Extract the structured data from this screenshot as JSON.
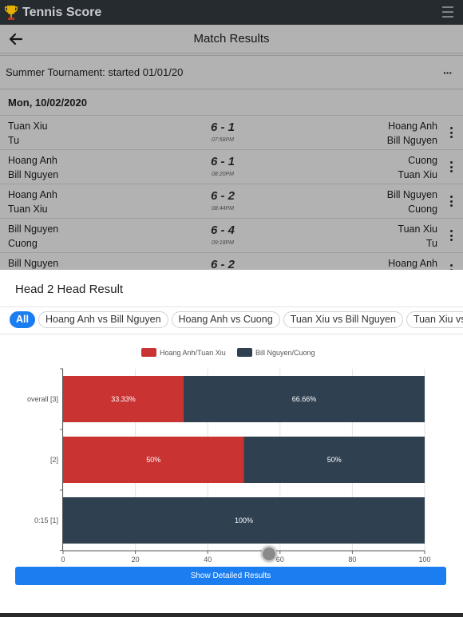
{
  "app": {
    "title": "Tennis Score"
  },
  "header": {
    "title": "Match Results"
  },
  "tournament": {
    "label": "Summer Tournament: started 01/01/20",
    "menu_label": "···"
  },
  "day": {
    "label": "Mon, 10/02/2020"
  },
  "matches": [
    {
      "left1": "Tuan Xiu",
      "left2": "Tu",
      "score": "6 - 1",
      "time": "07:58PM",
      "right1": "Hoang Anh",
      "right2": "Bill Nguyen"
    },
    {
      "left1": "Hoang Anh",
      "left2": "Bill Nguyen",
      "score": "6 - 1",
      "time": "08:20PM",
      "right1": "Cuong",
      "right2": "Tuan Xiu"
    },
    {
      "left1": "Hoang Anh",
      "left2": "Tuan Xiu",
      "score": "6 - 2",
      "time": "08:44PM",
      "right1": "Bill Nguyen",
      "right2": "Cuong"
    },
    {
      "left1": "Bill Nguyen",
      "left2": "Cuong",
      "score": "6 - 4",
      "time": "09:18PM",
      "right1": "Tuan Xiu",
      "right2": "Tu"
    },
    {
      "left1": "Bill Nguyen",
      "left2": "",
      "score": "6 - 2",
      "time": "",
      "right1": "Hoang Anh",
      "right2": ""
    }
  ],
  "sheet": {
    "title": "Head 2 Head Result",
    "chips": [
      "All",
      "Hoang Anh vs Bill Nguyen",
      "Hoang Anh vs Cuong",
      "Tuan Xiu vs Bill Nguyen",
      "Tuan Xiu vs Cuong"
    ],
    "button_label": "Show Detailed Results"
  },
  "colors": {
    "team1": "#c93433",
    "team2": "#2f4050",
    "accent": "#1a7df0",
    "topbar": "#262b30"
  },
  "chart_data": {
    "type": "bar",
    "orientation": "horizontal",
    "stacked": true,
    "categories": [
      "overall [3]",
      "[2]",
      "0:15 [1]"
    ],
    "series": [
      {
        "name": "Hoang Anh/Tuan Xiu",
        "values": [
          33.33,
          50,
          0
        ],
        "labels": [
          "33.33%",
          "50%",
          ""
        ]
      },
      {
        "name": "Bill Nguyen/Cuong",
        "values": [
          66.66,
          50,
          100
        ],
        "labels": [
          "66.66%",
          "50%",
          "100%"
        ]
      }
    ],
    "xlim": [
      0,
      100
    ],
    "xticks": [
      "0",
      "20",
      "40",
      "60",
      "80",
      "100"
    ],
    "grid": true,
    "legend": "top-center"
  }
}
